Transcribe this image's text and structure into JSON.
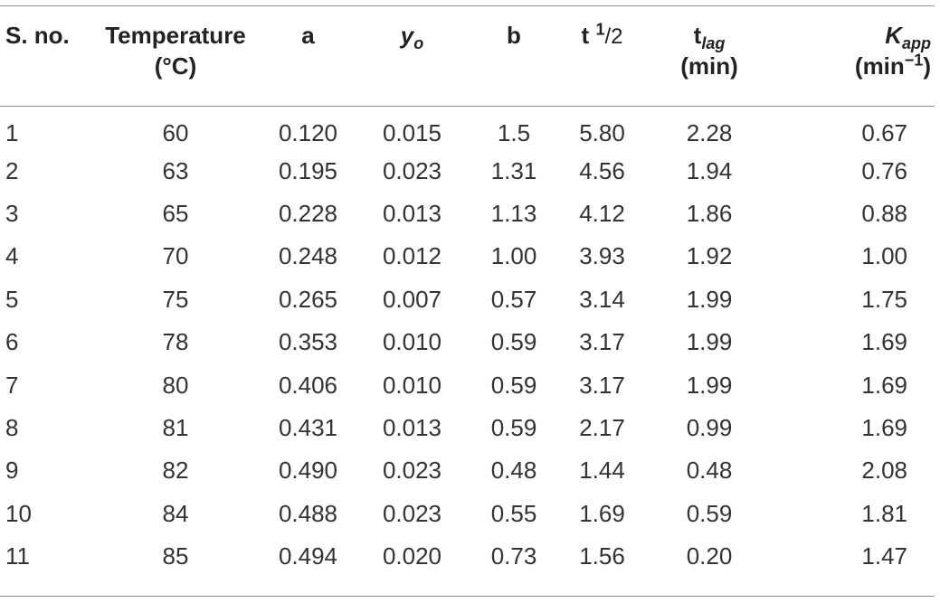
{
  "headers": {
    "sno": "S. no.",
    "temperature": "Temperature",
    "temperature_unit": "(°C)",
    "a": "a",
    "yo_main": "y",
    "yo_sub": "o",
    "b": "b",
    "thalf_t": "t",
    "thalf_num": "1",
    "thalf_den": "/2",
    "tlag_main": "t",
    "tlag_sub": "lag",
    "tlag_unit": "(min)",
    "kapp_main": "K",
    "kapp_sub": "app",
    "kapp_unit_main": "(min",
    "kapp_unit_sup": "−1",
    "kapp_unit_close": ")"
  },
  "rows": [
    [
      "1",
      "60",
      "0.120",
      "0.015",
      "1.5",
      "5.80",
      "2.28",
      "0.67"
    ],
    [
      "2",
      "63",
      "0.195",
      "0.023",
      "1.31",
      "4.56",
      "1.94",
      "0.76"
    ],
    [
      "3",
      "65",
      "0.228",
      "0.013",
      "1.13",
      "4.12",
      "1.86",
      "0.88"
    ],
    [
      "4",
      "70",
      "0.248",
      "0.012",
      "1.00",
      "3.93",
      "1.92",
      "1.00"
    ],
    [
      "5",
      "75",
      "0.265",
      "0.007",
      "0.57",
      "3.14",
      "1.99",
      "1.75"
    ],
    [
      "6",
      "78",
      "0.353",
      "0.010",
      "0.59",
      "3.17",
      "1.99",
      "1.69"
    ],
    [
      "7",
      "80",
      "0.406",
      "0.010",
      "0.59",
      "3.17",
      "1.99",
      "1.69"
    ],
    [
      "8",
      "81",
      "0.431",
      "0.013",
      "0.59",
      "2.17",
      "0.99",
      "1.69"
    ],
    [
      "9",
      "82",
      "0.490",
      "0.023",
      "0.48",
      "1.44",
      "0.48",
      "2.08"
    ],
    [
      "10",
      "84",
      "0.488",
      "0.023",
      "0.55",
      "1.69",
      "0.59",
      "1.81"
    ],
    [
      "11",
      "85",
      "0.494",
      "0.020",
      "0.73",
      "1.56",
      "0.20",
      "1.47"
    ]
  ]
}
